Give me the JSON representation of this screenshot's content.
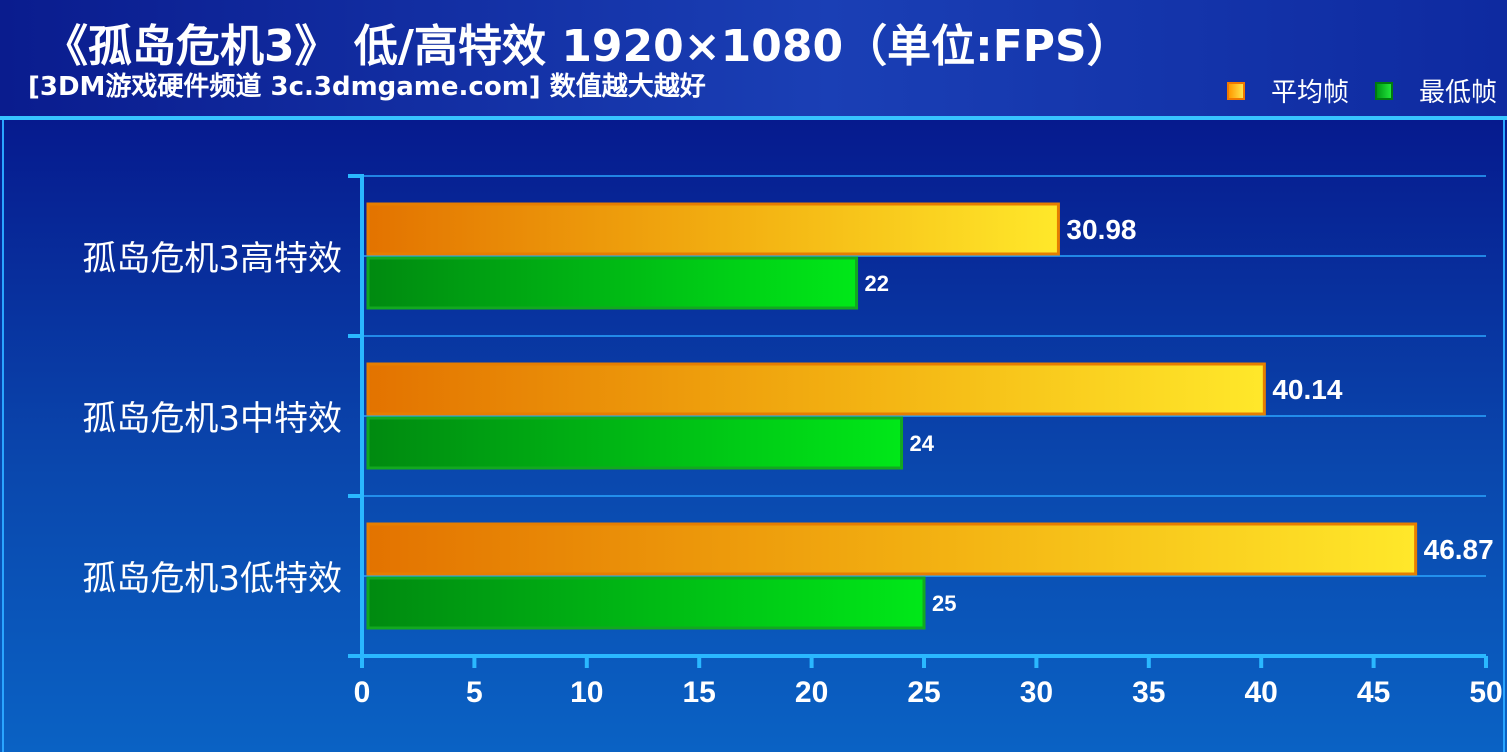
{
  "header": {
    "title": "《孤岛危机3》 低/高特效 1920×1080（单位:FPS）",
    "subtitle": "[3DM游戏硬件频道 3c.3dmgame.com] 数值越大越好"
  },
  "legend": {
    "items": [
      {
        "label": "平均帧",
        "icon": "orange-square"
      },
      {
        "label": "最低帧",
        "icon": "green-square"
      }
    ]
  },
  "chart_data": {
    "type": "bar",
    "orientation": "horizontal",
    "categories": [
      "孤岛危机3高特效",
      "孤岛危机3中特效",
      "孤岛危机3低特效"
    ],
    "series": [
      {
        "name": "平均帧",
        "values": [
          30.98,
          40.14,
          46.87
        ],
        "labels": [
          "30.98",
          "40.14",
          "46.87"
        ],
        "color": "#f5a623"
      },
      {
        "name": "最低帧",
        "values": [
          22,
          24,
          25
        ],
        "labels": [
          "22",
          "24",
          "25"
        ],
        "color": "#14c82a"
      }
    ],
    "xlim": [
      0,
      50
    ],
    "ticks": [
      "0",
      "5",
      "10",
      "15",
      "20",
      "25",
      "30",
      "35",
      "40",
      "45",
      "50"
    ],
    "grid": true,
    "legend_position": "top-right"
  }
}
